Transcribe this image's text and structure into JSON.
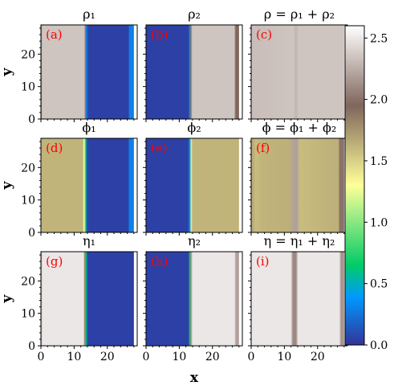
{
  "chart_data": {
    "type": "heatmap",
    "xlabel": "x",
    "ylabel": "y",
    "xlim": [
      0,
      29
    ],
    "ylim": [
      0,
      29
    ],
    "x_ticks": [
      "0",
      "10",
      "20"
    ],
    "y_ticks": [
      "0",
      "10",
      "20"
    ],
    "colorbar": {
      "min": 0.0,
      "max": 2.6,
      "ticks": [
        "0.0",
        "0.5",
        "1.0",
        "1.5",
        "2.0",
        "2.5"
      ],
      "tick_values": [
        0.0,
        0.5,
        1.0,
        1.5,
        2.0,
        2.5
      ],
      "colormap": "terrain"
    },
    "panels": [
      {
        "letter": "(a)",
        "title": "ρ₁",
        "profile": [
          [
            0,
            1.95
          ],
          [
            0.4,
            2.35
          ],
          [
            13.5,
            2.35
          ],
          [
            13.8,
            2.05
          ],
          [
            14.2,
            0.3
          ],
          [
            14.6,
            0.12
          ],
          [
            15.0,
            0.05
          ],
          [
            27.3,
            0.05
          ],
          [
            27.6,
            0.3
          ],
          [
            28,
            0.3
          ]
        ]
      },
      {
        "letter": "(b)",
        "title": "ρ₂",
        "profile": [
          [
            0,
            0.05
          ],
          [
            13.2,
            0.05
          ],
          [
            13.5,
            0.3
          ],
          [
            14.0,
            1.9
          ],
          [
            14.4,
            2.35
          ],
          [
            27.5,
            2.35
          ],
          [
            28,
            1.95
          ]
        ]
      },
      {
        "letter": "(c)",
        "title": "ρ = ρ₁ + ρ₂",
        "profile": [
          [
            0,
            2.32
          ],
          [
            13.2,
            2.35
          ],
          [
            14.0,
            2.28
          ],
          [
            14.8,
            2.35
          ],
          [
            28,
            2.35
          ]
        ]
      },
      {
        "letter": "(d)",
        "title": "ϕ₁",
        "profile": [
          [
            0,
            1.62
          ],
          [
            13.0,
            1.62
          ],
          [
            13.5,
            1.3
          ],
          [
            14.0,
            0.6
          ],
          [
            14.4,
            0.1
          ],
          [
            15.0,
            0.05
          ],
          [
            27.2,
            0.05
          ],
          [
            27.6,
            0.3
          ],
          [
            28,
            0.3
          ]
        ]
      },
      {
        "letter": "(e)",
        "title": "ϕ₂",
        "profile": [
          [
            0,
            0.05
          ],
          [
            13.0,
            0.05
          ],
          [
            13.6,
            0.3
          ],
          [
            14.1,
            1.2
          ],
          [
            14.5,
            1.62
          ],
          [
            28,
            1.62
          ]
        ]
      },
      {
        "letter": "(f)",
        "title": "ϕ = ϕ₁ + ϕ₂",
        "profile": [
          [
            0,
            1.66
          ],
          [
            0.7,
            1.65
          ],
          [
            1.4,
            1.58
          ],
          [
            3.5,
            1.62
          ],
          [
            12.0,
            1.64
          ],
          [
            13.3,
            2.2
          ],
          [
            14.4,
            2.2
          ],
          [
            15.0,
            1.58
          ],
          [
            27.2,
            1.64
          ],
          [
            27.6,
            2.0
          ],
          [
            28,
            2.0
          ]
        ]
      },
      {
        "letter": "(g)",
        "title": "η₁",
        "profile": [
          [
            0,
            2.2
          ],
          [
            0.5,
            2.5
          ],
          [
            13.3,
            2.5
          ],
          [
            13.6,
            1.8
          ],
          [
            14.1,
            0.6
          ],
          [
            14.6,
            0.05
          ],
          [
            28,
            0.05
          ]
        ]
      },
      {
        "letter": "(h)",
        "title": "η₂",
        "profile": [
          [
            0,
            0.05
          ],
          [
            13.2,
            0.05
          ],
          [
            13.6,
            0.6
          ],
          [
            14.0,
            1.8
          ],
          [
            14.5,
            2.5
          ],
          [
            27.6,
            2.5
          ],
          [
            28,
            2.2
          ]
        ]
      },
      {
        "letter": "(i)",
        "title": "η = η₁ + η₂",
        "profile": [
          [
            0,
            2.5
          ],
          [
            12.4,
            2.5
          ],
          [
            13.0,
            2.1
          ],
          [
            14.0,
            2.1
          ],
          [
            14.6,
            2.5
          ],
          [
            27.5,
            2.5
          ],
          [
            28,
            2.15
          ]
        ]
      }
    ]
  }
}
